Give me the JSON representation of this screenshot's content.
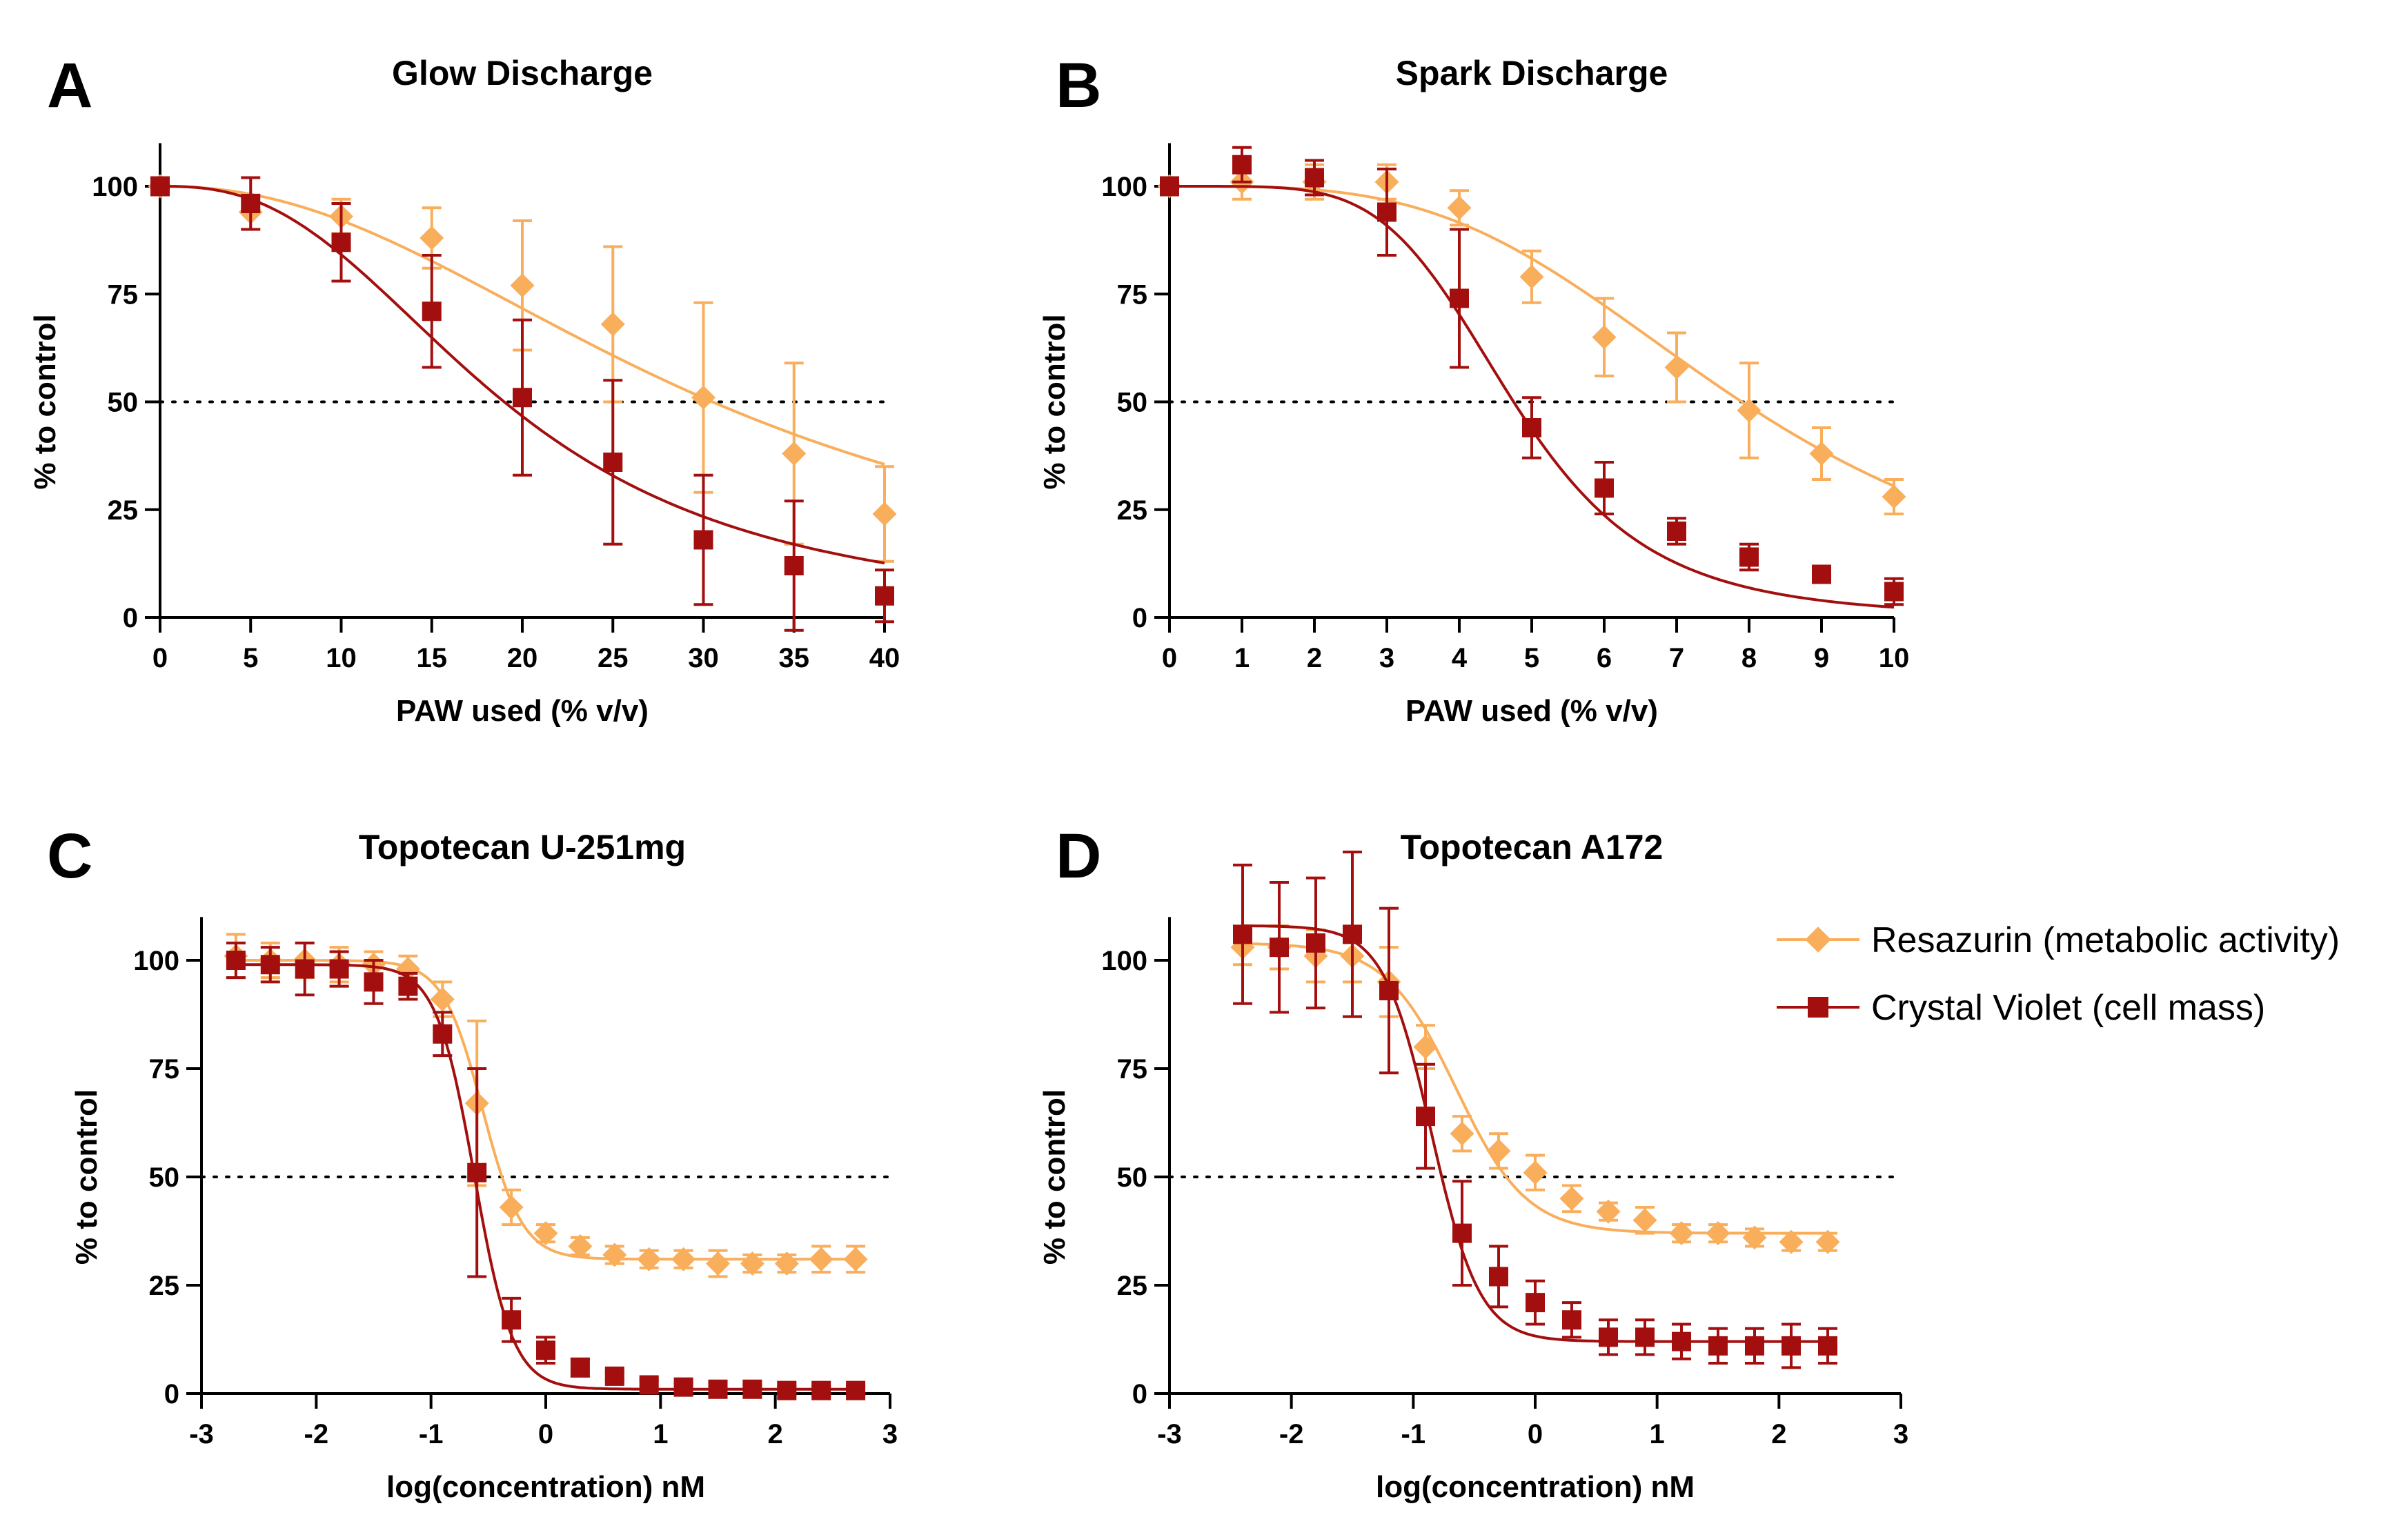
{
  "colors": {
    "resazurin": "#F9AE5C",
    "crystal_violet": "#A30F0F",
    "axis": "#000000",
    "reference_line": "#000000"
  },
  "legend": {
    "items": [
      {
        "label": "Resazurin (metabolic activity)",
        "marker": "diamond",
        "color_key": "resazurin"
      },
      {
        "label": "Crystal Violet (cell mass)",
        "marker": "square",
        "color_key": "crystal_violet"
      }
    ]
  },
  "chart_data": [
    {
      "panel": "A",
      "type": "line",
      "title": "Glow Discharge",
      "xlabel": "PAW used (% v/v)",
      "ylabel": "% to control",
      "xlim": [
        0,
        40
      ],
      "ylim": [
        0,
        110
      ],
      "xticks": [
        0,
        5,
        10,
        15,
        20,
        25,
        30,
        35,
        40
      ],
      "yticks": [
        0,
        25,
        50,
        75,
        100
      ],
      "reference_line": 50,
      "series": [
        {
          "name": "Resazurin (metabolic activity)",
          "marker": "diamond",
          "color_key": "resazurin",
          "x": [
            0,
            5,
            10,
            15,
            20,
            25,
            30,
            35,
            40
          ],
          "y": [
            100,
            94,
            93,
            88,
            77,
            68,
            51,
            38,
            24
          ],
          "err": [
            2,
            4,
            4,
            7,
            15,
            18,
            22,
            21,
            11
          ],
          "fit": {
            "top": 100,
            "bottom": 0,
            "ic50": 30.5,
            "hill": 2.2
          }
        },
        {
          "name": "Crystal Violet (cell mass)",
          "marker": "square",
          "color_key": "crystal_violet",
          "x": [
            0,
            5,
            10,
            15,
            20,
            25,
            30,
            35,
            40
          ],
          "y": [
            100,
            96,
            87,
            71,
            51,
            36,
            18,
            12,
            5
          ],
          "err": [
            2,
            6,
            9,
            13,
            18,
            19,
            15,
            15,
            6
          ],
          "fit": {
            "top": 100,
            "bottom": 0,
            "ic50": 19,
            "hill": 2.6
          }
        }
      ]
    },
    {
      "panel": "B",
      "type": "line",
      "title": "Spark Discharge",
      "xlabel": "PAW used (% v/v)",
      "ylabel": "% to control",
      "xlim": [
        0,
        10
      ],
      "ylim": [
        0,
        110
      ],
      "xticks": [
        0,
        1,
        2,
        3,
        4,
        5,
        6,
        7,
        8,
        9,
        10
      ],
      "yticks": [
        0,
        25,
        50,
        75,
        100
      ],
      "reference_line": 50,
      "series": [
        {
          "name": "Resazurin (metabolic activity)",
          "marker": "diamond",
          "color_key": "resazurin",
          "x": [
            0,
            1,
            2,
            3,
            4,
            5,
            6,
            7,
            8,
            9,
            10
          ],
          "y": [
            100,
            101,
            101,
            101,
            95,
            79,
            65,
            58,
            48,
            38,
            28
          ],
          "err": [
            2,
            4,
            4,
            4,
            4,
            6,
            9,
            8,
            11,
            6,
            4
          ],
          "fit": {
            "top": 100,
            "bottom": 0,
            "ic50": 7.9,
            "hill": 3.5
          }
        },
        {
          "name": "Crystal Violet (cell mass)",
          "marker": "square",
          "color_key": "crystal_violet",
          "x": [
            0,
            1,
            2,
            3,
            4,
            5,
            6,
            7,
            8,
            9,
            10
          ],
          "y": [
            100,
            105,
            102,
            94,
            74,
            44,
            30,
            20,
            14,
            10,
            6
          ],
          "err": [
            2,
            4,
            4,
            10,
            16,
            7,
            6,
            3,
            3,
            1,
            3
          ],
          "fit": {
            "top": 100,
            "bottom": 0,
            "ic50": 4.75,
            "hill": 5
          }
        }
      ]
    },
    {
      "panel": "C",
      "type": "line",
      "title": "Topotecan U-251mg",
      "xlabel": "log(concentration) nM",
      "ylabel": "% to control",
      "xlim": [
        -3,
        3
      ],
      "ylim": [
        0,
        110
      ],
      "xticks": [
        -3,
        -2,
        -1,
        0,
        1,
        2,
        3
      ],
      "yticks": [
        0,
        25,
        50,
        75,
        100
      ],
      "reference_line": 50,
      "series": [
        {
          "name": "Resazurin (metabolic activity)",
          "marker": "diamond",
          "color_key": "resazurin",
          "x": [
            -2.7,
            -2.4,
            -2.1,
            -1.8,
            -1.5,
            -1.2,
            -0.9,
            -0.6,
            -0.3,
            0,
            0.3,
            0.6,
            0.9,
            1.2,
            1.5,
            1.8,
            2.1,
            2.4,
            2.7
          ],
          "y": [
            101,
            100,
            100,
            99,
            99,
            98,
            91,
            67,
            43,
            37,
            34,
            32,
            31,
            31,
            30,
            30,
            30,
            31,
            31
          ],
          "err": [
            5,
            4,
            4,
            4,
            3,
            3,
            4,
            19,
            4,
            2,
            2,
            2,
            2,
            2,
            3,
            2,
            2,
            3,
            3
          ],
          "fit": {
            "top": 100,
            "bottom": 31,
            "logic50": -0.55,
            "hill": 2.5
          }
        },
        {
          "name": "Crystal Violet (cell mass)",
          "marker": "square",
          "color_key": "crystal_violet",
          "x": [
            -2.7,
            -2.4,
            -2.1,
            -1.8,
            -1.5,
            -1.2,
            -0.9,
            -0.6,
            -0.3,
            0,
            0.3,
            0.6,
            0.9,
            1.2,
            1.5,
            1.8,
            2.1,
            2.4,
            2.7
          ],
          "y": [
            100,
            99,
            98,
            98,
            95,
            94,
            83,
            51,
            17,
            10,
            6,
            4,
            2,
            1.5,
            1,
            1,
            0.7,
            0.7,
            0.7
          ],
          "err": [
            4,
            4,
            6,
            4,
            5,
            3,
            5,
            24,
            5,
            3,
            2,
            1,
            1,
            1,
            1,
            1,
            1,
            1,
            1
          ],
          "fit": {
            "top": 99,
            "bottom": 1,
            "logic50": -0.62,
            "hill": 2.6
          }
        }
      ]
    },
    {
      "panel": "D",
      "type": "line",
      "title": "Topotecan A172",
      "xlabel": "log(concentration) nM",
      "ylabel": "% to control",
      "xlim": [
        -3,
        3
      ],
      "ylim": [
        0,
        110
      ],
      "xticks": [
        -3,
        -2,
        -1,
        0,
        1,
        2,
        3
      ],
      "yticks": [
        0,
        25,
        50,
        75,
        100
      ],
      "reference_line": 50,
      "series": [
        {
          "name": "Resazurin (metabolic activity)",
          "marker": "diamond",
          "color_key": "resazurin",
          "x": [
            -2.4,
            -2.1,
            -1.8,
            -1.5,
            -1.2,
            -0.9,
            -0.6,
            -0.3,
            0,
            0.3,
            0.6,
            0.9,
            1.2,
            1.5,
            1.8,
            2.1,
            2.4
          ],
          "y": [
            103,
            103,
            101,
            101,
            95,
            80,
            60,
            56,
            51,
            45,
            42,
            40,
            37,
            37,
            36,
            35,
            35
          ],
          "err": [
            4,
            5,
            6,
            6,
            8,
            5,
            4,
            4,
            4,
            3,
            2,
            3,
            2,
            2,
            2,
            2,
            2
          ],
          "fit": {
            "top": 104,
            "bottom": 37,
            "logic50": -0.65,
            "hill": 1.5
          }
        },
        {
          "name": "Crystal Violet (cell mass)",
          "marker": "square",
          "color_key": "crystal_violet",
          "x": [
            -2.4,
            -2.1,
            -1.8,
            -1.5,
            -1.2,
            -0.9,
            -0.6,
            -0.3,
            0,
            0.3,
            0.6,
            0.9,
            1.2,
            1.5,
            1.8,
            2.1,
            2.4
          ],
          "y": [
            106,
            103,
            104,
            106,
            93,
            64,
            37,
            27,
            21,
            17,
            13,
            13,
            12,
            11,
            11,
            11,
            11
          ],
          "err": [
            16,
            15,
            15,
            19,
            19,
            12,
            12,
            7,
            5,
            4,
            4,
            4,
            4,
            4,
            4,
            5,
            4
          ],
          "fit": {
            "top": 108,
            "bottom": 12,
            "logic50": -0.85,
            "hill": 2.2
          }
        }
      ]
    }
  ]
}
